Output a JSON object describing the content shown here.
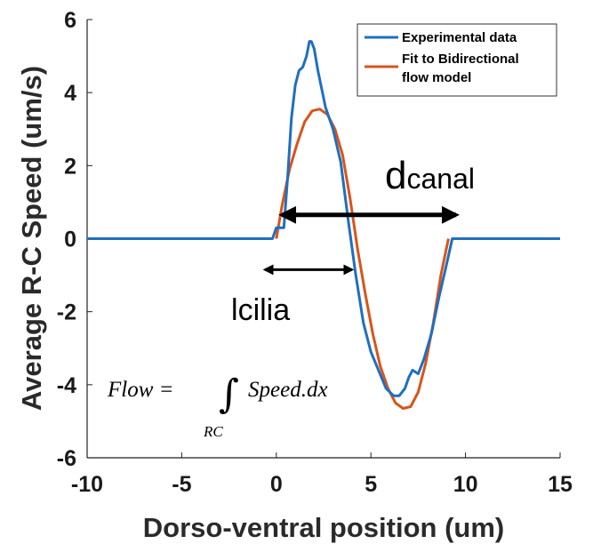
{
  "chart_data": {
    "type": "line",
    "xlabel": "Dorso-ventral position (um)",
    "ylabel": "Average R-C Speed (um/s)",
    "xlim": [
      -10,
      15
    ],
    "ylim": [
      -6,
      6
    ],
    "xticks": [
      "-10",
      "-5",
      "0",
      "5",
      "10",
      "15"
    ],
    "yticks": [
      "6",
      "4",
      "2",
      "0",
      "-2",
      "-4",
      "-6"
    ],
    "grid": false,
    "legend_position": "top-right",
    "series": [
      {
        "name": "Experimental data",
        "color": "#1f6fbf",
        "x": [
          -10,
          -0.2,
          0,
          0.4,
          0.6,
          0.8,
          1.0,
          1.2,
          1.4,
          1.6,
          1.75,
          1.85,
          2.0,
          2.2,
          2.6,
          3.0,
          3.4,
          3.8,
          4.2,
          4.6,
          5.0,
          5.4,
          5.8,
          6.2,
          6.5,
          6.8,
          7.0,
          7.2,
          7.5,
          7.8,
          8.2,
          8.6,
          9.0,
          9.3,
          15
        ],
        "y": [
          0,
          0,
          0.3,
          0.3,
          1.7,
          3.3,
          4.2,
          4.6,
          4.7,
          5.0,
          5.4,
          5.4,
          5.2,
          4.6,
          3.6,
          3.0,
          2.1,
          0.5,
          -1.0,
          -2.3,
          -3.1,
          -3.6,
          -4.1,
          -4.3,
          -4.3,
          -4.1,
          -3.8,
          -3.6,
          -3.7,
          -3.3,
          -2.6,
          -1.6,
          -0.7,
          0,
          0
        ]
      },
      {
        "name": "Fit to Bidirectional\n flow model",
        "color": "#d9541a",
        "x": [
          0,
          0.3,
          0.7,
          1.1,
          1.5,
          1.9,
          2.3,
          2.7,
          3.1,
          3.5,
          3.9,
          4.3,
          4.7,
          5.1,
          5.5,
          5.9,
          6.3,
          6.7,
          7.1,
          7.5,
          7.9,
          8.3,
          8.7,
          9.1
        ],
        "y": [
          0,
          0.9,
          1.9,
          2.6,
          3.2,
          3.5,
          3.55,
          3.4,
          3.0,
          2.3,
          1.1,
          -0.3,
          -1.5,
          -2.6,
          -3.5,
          -4.1,
          -4.5,
          -4.65,
          -4.6,
          -4.2,
          -3.4,
          -2.3,
          -1.0,
          0
        ]
      }
    ],
    "annotations": {
      "d_main": "d",
      "d_sub": "canal",
      "d_arrow_x": [
        0.3,
        9.5
      ],
      "d_arrow_y": 0.65,
      "l_main": "l",
      "l_sub": "cilia",
      "l_arrow_x": [
        -0.6,
        4.0
      ],
      "l_arrow_y": -0.85,
      "formula_lhs": "Flow =",
      "formula_rhs": "Speed.dx",
      "formula_integral": "∫",
      "formula_subscript": "RC"
    }
  }
}
